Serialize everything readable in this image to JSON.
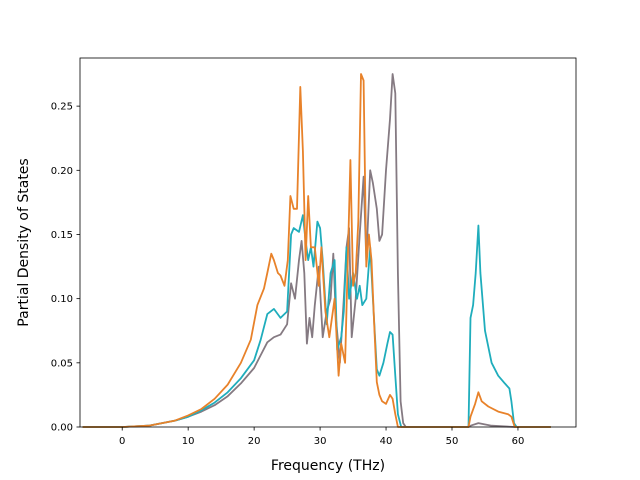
{
  "chart_data": {
    "type": "line",
    "title": "",
    "xlabel": "Frequency (THz)",
    "ylabel": "Partial Density of States",
    "xlim": [
      -6.4,
      68.8
    ],
    "ylim": [
      0,
      0.2875
    ],
    "xticks": [
      0,
      10,
      20,
      30,
      40,
      50,
      60
    ],
    "yticks": [
      0.0,
      0.05,
      0.1,
      0.15,
      0.2,
      0.25
    ],
    "ytick_labels": [
      "0.00",
      "0.05",
      "0.10",
      "0.15",
      "0.20",
      "0.25"
    ],
    "grid": false,
    "legend": "none",
    "series": [
      {
        "color": "#857a82",
        "points": [
          [
            -6,
            0
          ],
          [
            0,
            0
          ],
          [
            4,
            0.001
          ],
          [
            8,
            0.005
          ],
          [
            10,
            0.008
          ],
          [
            12,
            0.012
          ],
          [
            14,
            0.017
          ],
          [
            16,
            0.024
          ],
          [
            18,
            0.034
          ],
          [
            20,
            0.046
          ],
          [
            21,
            0.056
          ],
          [
            22,
            0.066
          ],
          [
            23,
            0.07
          ],
          [
            24,
            0.072
          ],
          [
            25,
            0.08
          ],
          [
            25.6,
            0.112
          ],
          [
            26.2,
            0.1
          ],
          [
            26.8,
            0.13
          ],
          [
            27.2,
            0.145
          ],
          [
            27.6,
            0.12
          ],
          [
            28,
            0.065
          ],
          [
            28.4,
            0.085
          ],
          [
            28.8,
            0.07
          ],
          [
            29.2,
            0.095
          ],
          [
            29.8,
            0.125
          ],
          [
            30.4,
            0.07
          ],
          [
            31,
            0.09
          ],
          [
            31.6,
            0.1
          ],
          [
            32,
            0.135
          ],
          [
            32.4,
            0.085
          ],
          [
            33,
            0.05
          ],
          [
            33.6,
            0.1
          ],
          [
            34,
            0.14
          ],
          [
            34.4,
            0.155
          ],
          [
            34.8,
            0.07
          ],
          [
            35.4,
            0.1
          ],
          [
            36,
            0.15
          ],
          [
            36.6,
            0.195
          ],
          [
            37,
            0.13
          ],
          [
            37.6,
            0.2
          ],
          [
            38,
            0.19
          ],
          [
            38.6,
            0.17
          ],
          [
            39,
            0.145
          ],
          [
            39.4,
            0.15
          ],
          [
            40,
            0.2
          ],
          [
            40.6,
            0.24
          ],
          [
            41,
            0.275
          ],
          [
            41.4,
            0.26
          ],
          [
            41.8,
            0.12
          ],
          [
            42.2,
            0.02
          ],
          [
            42.6,
            0.003
          ],
          [
            43,
            0
          ],
          [
            52.5,
            0
          ],
          [
            52.8,
            0.001
          ],
          [
            54,
            0.003
          ],
          [
            56,
            0.001
          ],
          [
            59.5,
            0
          ],
          [
            65,
            0
          ]
        ]
      },
      {
        "color": "#1fadbc",
        "points": [
          [
            -6,
            0
          ],
          [
            0,
            0
          ],
          [
            4,
            0.001
          ],
          [
            8,
            0.005
          ],
          [
            10,
            0.008
          ],
          [
            12,
            0.013
          ],
          [
            14,
            0.019
          ],
          [
            16,
            0.027
          ],
          [
            18,
            0.038
          ],
          [
            20,
            0.052
          ],
          [
            21,
            0.068
          ],
          [
            22,
            0.088
          ],
          [
            23,
            0.092
          ],
          [
            24,
            0.085
          ],
          [
            25,
            0.09
          ],
          [
            25.6,
            0.15
          ],
          [
            26,
            0.155
          ],
          [
            26.8,
            0.152
          ],
          [
            27.4,
            0.165
          ],
          [
            27.8,
            0.145
          ],
          [
            28.2,
            0.13
          ],
          [
            28.6,
            0.14
          ],
          [
            29,
            0.125
          ],
          [
            29.6,
            0.16
          ],
          [
            30,
            0.155
          ],
          [
            30.4,
            0.13
          ],
          [
            31,
            0.08
          ],
          [
            31.6,
            0.12
          ],
          [
            32.2,
            0.13
          ],
          [
            32.6,
            0.06
          ],
          [
            33.2,
            0.07
          ],
          [
            33.6,
            0.09
          ],
          [
            34,
            0.14
          ],
          [
            34.4,
            0.1
          ],
          [
            35,
            0.12
          ],
          [
            35.6,
            0.1
          ],
          [
            36,
            0.11
          ],
          [
            36.4,
            0.095
          ],
          [
            37,
            0.1
          ],
          [
            37.6,
            0.14
          ],
          [
            38,
            0.1
          ],
          [
            38.6,
            0.045
          ],
          [
            39,
            0.04
          ],
          [
            39.6,
            0.05
          ],
          [
            40.2,
            0.065
          ],
          [
            40.6,
            0.074
          ],
          [
            41,
            0.072
          ],
          [
            41.4,
            0.04
          ],
          [
            41.8,
            0.01
          ],
          [
            42.3,
            0
          ],
          [
            52.5,
            0
          ],
          [
            52.8,
            0.085
          ],
          [
            53.2,
            0.095
          ],
          [
            53.6,
            0.12
          ],
          [
            54,
            0.157
          ],
          [
            54.3,
            0.12
          ],
          [
            55,
            0.075
          ],
          [
            56,
            0.05
          ],
          [
            57,
            0.04
          ],
          [
            58,
            0.034
          ],
          [
            58.7,
            0.03
          ],
          [
            59,
            0.02
          ],
          [
            59.4,
            0.003
          ],
          [
            59.8,
            0
          ],
          [
            65,
            0
          ]
        ]
      },
      {
        "color": "#e8822a",
        "points": [
          [
            -6,
            0
          ],
          [
            0,
            0
          ],
          [
            4,
            0.001
          ],
          [
            8,
            0.005
          ],
          [
            10,
            0.009
          ],
          [
            12,
            0.014
          ],
          [
            14,
            0.022
          ],
          [
            16,
            0.033
          ],
          [
            18,
            0.05
          ],
          [
            19.5,
            0.068
          ],
          [
            20.5,
            0.095
          ],
          [
            21.5,
            0.108
          ],
          [
            22,
            0.12
          ],
          [
            22.6,
            0.135
          ],
          [
            23,
            0.13
          ],
          [
            23.6,
            0.12
          ],
          [
            24,
            0.118
          ],
          [
            24.6,
            0.11
          ],
          [
            25.1,
            0.13
          ],
          [
            25.5,
            0.18
          ],
          [
            26,
            0.17
          ],
          [
            26.5,
            0.17
          ],
          [
            27,
            0.265
          ],
          [
            27.4,
            0.215
          ],
          [
            27.8,
            0.13
          ],
          [
            28.2,
            0.18
          ],
          [
            28.6,
            0.14
          ],
          [
            29.2,
            0.14
          ],
          [
            29.8,
            0.11
          ],
          [
            30.2,
            0.14
          ],
          [
            30.8,
            0.09
          ],
          [
            31.4,
            0.07
          ],
          [
            32.2,
            0.1
          ],
          [
            32.8,
            0.04
          ],
          [
            33.2,
            0.065
          ],
          [
            33.8,
            0.05
          ],
          [
            34.2,
            0.13
          ],
          [
            34.6,
            0.208
          ],
          [
            35,
            0.11
          ],
          [
            35.4,
            0.12
          ],
          [
            35.8,
            0.16
          ],
          [
            36.2,
            0.275
          ],
          [
            36.6,
            0.27
          ],
          [
            37,
            0.125
          ],
          [
            37.4,
            0.15
          ],
          [
            37.8,
            0.13
          ],
          [
            38.2,
            0.08
          ],
          [
            38.6,
            0.035
          ],
          [
            39,
            0.025
          ],
          [
            39.4,
            0.02
          ],
          [
            40,
            0.018
          ],
          [
            40.6,
            0.025
          ],
          [
            41,
            0.022
          ],
          [
            41.4,
            0.01
          ],
          [
            41.8,
            0
          ],
          [
            52.5,
            0
          ],
          [
            52.8,
            0.008
          ],
          [
            53.5,
            0.018
          ],
          [
            54,
            0.027
          ],
          [
            54.5,
            0.02
          ],
          [
            55.5,
            0.016
          ],
          [
            57,
            0.012
          ],
          [
            58.5,
            0.01
          ],
          [
            59,
            0.008
          ],
          [
            59.5,
            0
          ],
          [
            65,
            0
          ]
        ]
      }
    ]
  }
}
